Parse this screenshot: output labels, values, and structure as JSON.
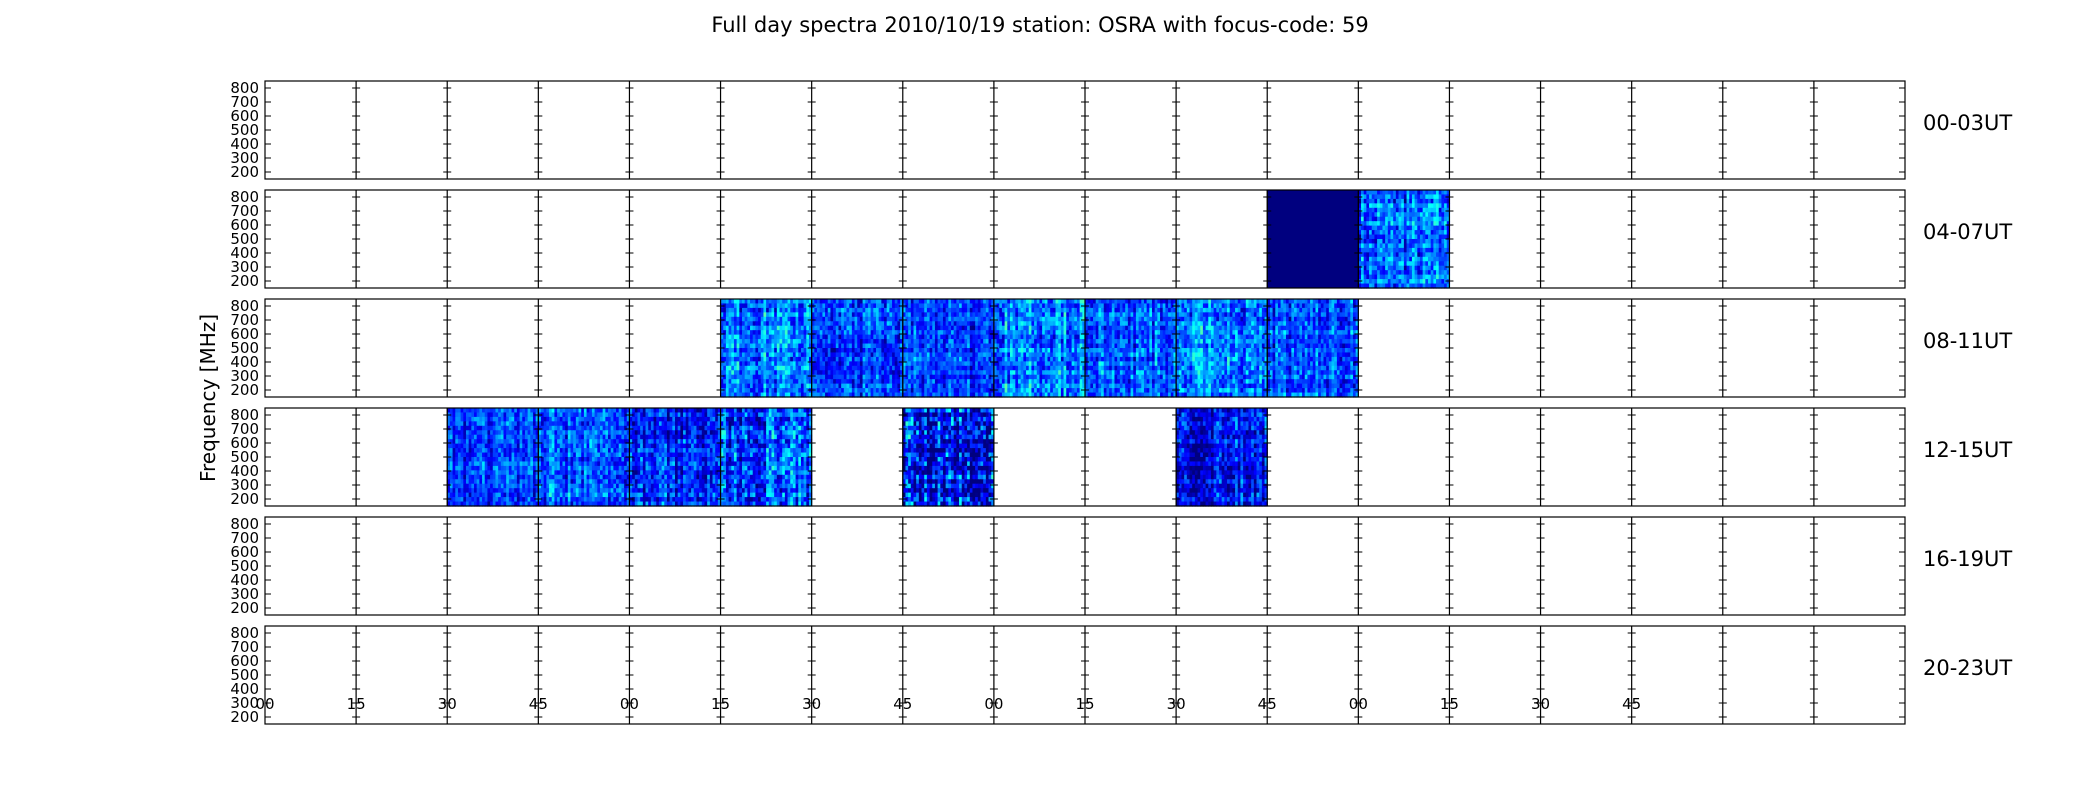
{
  "chart_data": {
    "type": "heatmap",
    "title": "Full day spectra 2010/10/19 station: OSRA with focus-code: 59",
    "ylabel": "Frequency [MHz]",
    "xlabel": "",
    "ylim": [
      150,
      850
    ],
    "y_ticks": [
      "200",
      "300",
      "400",
      "500",
      "600",
      "700",
      "800"
    ],
    "x_ticks": [
      "00",
      "15",
      "30",
      "45",
      "00",
      "15",
      "30",
      "45",
      "00",
      "15",
      "30",
      "45",
      "00",
      "15",
      "30",
      "45"
    ],
    "minutes_per_row": 240,
    "block_minutes": 15,
    "colormap": [
      "#00007f",
      "#0000ff",
      "#007fff",
      "#00ffff",
      "#7fff7f",
      "#ffff00"
    ],
    "rows": [
      {
        "label": "00-03UT",
        "blocks": []
      },
      {
        "label": "04-07UT",
        "blocks": [
          {
            "start": 165,
            "level": 0.0,
            "var": 0.0
          },
          {
            "start": 180,
            "level": 0.35,
            "var": 0.22
          }
        ]
      },
      {
        "label": "08-11UT",
        "blocks": [
          {
            "start": 75,
            "level": 0.4,
            "var": 0.22
          },
          {
            "start": 90,
            "level": 0.28,
            "var": 0.2
          },
          {
            "start": 105,
            "level": 0.3,
            "var": 0.18
          },
          {
            "start": 120,
            "level": 0.42,
            "var": 0.22
          },
          {
            "start": 135,
            "level": 0.33,
            "var": 0.2
          },
          {
            "start": 150,
            "level": 0.4,
            "var": 0.22
          },
          {
            "start": 165,
            "level": 0.32,
            "var": 0.2
          }
        ]
      },
      {
        "label": "12-15UT",
        "blocks": [
          {
            "start": 30,
            "level": 0.3,
            "var": 0.18
          },
          {
            "start": 45,
            "level": 0.34,
            "var": 0.2
          },
          {
            "start": 60,
            "level": 0.25,
            "var": 0.22
          },
          {
            "start": 75,
            "level": 0.3,
            "var": 0.26
          },
          {
            "start": 105,
            "level": 0.18,
            "var": 0.35
          },
          {
            "start": 150,
            "level": 0.2,
            "var": 0.22
          }
        ]
      },
      {
        "label": "16-19UT",
        "blocks": []
      },
      {
        "label": "20-23UT",
        "blocks": []
      }
    ]
  }
}
